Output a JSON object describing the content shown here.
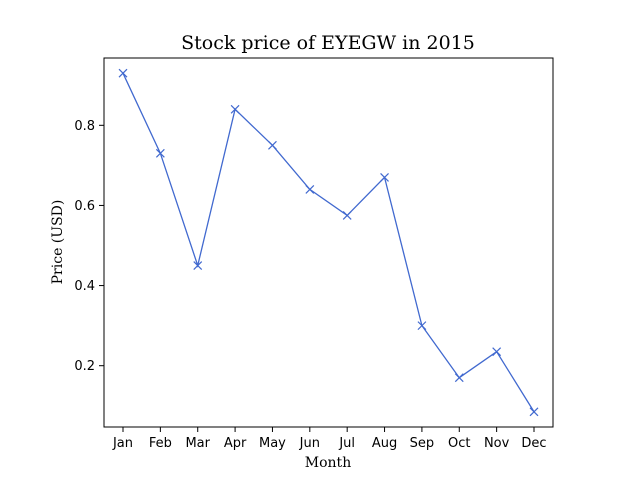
{
  "chart_data": {
    "type": "line",
    "title": "Stock price of EYEGW in 2015",
    "xlabel": "Month",
    "ylabel": "Price (USD)",
    "categories": [
      "Jan",
      "Feb",
      "Mar",
      "Apr",
      "May",
      "Jun",
      "Jul",
      "Aug",
      "Sep",
      "Oct",
      "Nov",
      "Dec"
    ],
    "series": [
      {
        "values": [
          0.93,
          0.73,
          0.45,
          0.84,
          0.75,
          0.64,
          0.575,
          0.67,
          0.3,
          0.17,
          0.235,
          0.085
        ],
        "color": "#4169cf",
        "marker": "x"
      }
    ],
    "ylim": [
      0.047,
      0.968
    ],
    "yticks": [
      0.2,
      0.4,
      0.6,
      0.8
    ],
    "ytick_labels": [
      "0.2",
      "0.4",
      "0.6",
      "0.8"
    ],
    "grid": false,
    "legend": "none"
  }
}
